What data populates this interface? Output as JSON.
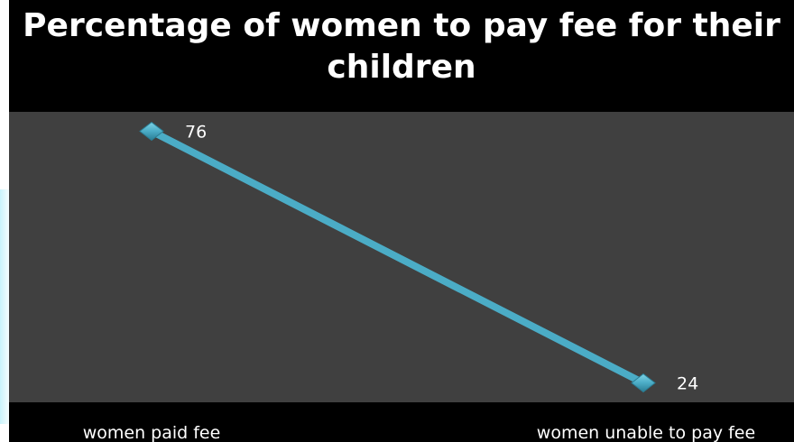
{
  "chart_data": {
    "type": "line",
    "title": "Percentage of women to pay fee for their children",
    "categories": [
      "women paid fee",
      "women unable to pay fee"
    ],
    "values": [
      76,
      24
    ],
    "ylim": [
      20,
      80
    ],
    "grid": false,
    "legend": "none",
    "colors": {
      "line": "#4bacc6",
      "plot_background": "#404040",
      "title_background": "#000000",
      "text": "#ffffff"
    },
    "marker": "diamond-icon"
  }
}
